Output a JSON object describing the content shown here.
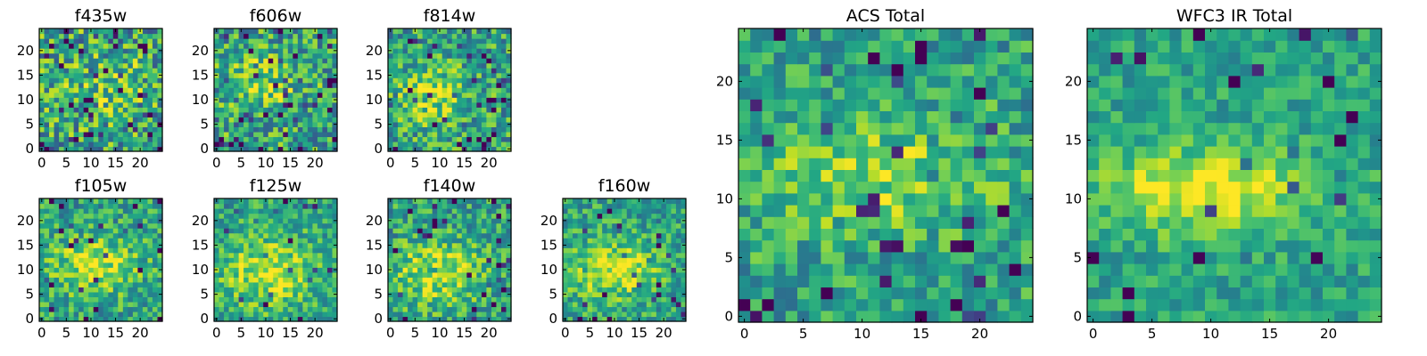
{
  "chart_data": [
    {
      "type": "heatmap",
      "title": "f435w",
      "size": 25,
      "colormap": "viridis",
      "seed": 11,
      "blob_strength": 0.25,
      "noise": 0.42,
      "dark_spots": 0.1,
      "blob": [
        0.55,
        0.55,
        0.35,
        0.28
      ],
      "xticks": [
        0,
        5,
        10,
        15,
        20
      ],
      "yticks": [
        0,
        5,
        10,
        15,
        20
      ],
      "xlim": [
        0,
        25
      ],
      "ylim": [
        0,
        25
      ]
    },
    {
      "type": "heatmap",
      "title": "f606w",
      "size": 25,
      "colormap": "viridis",
      "seed": 23,
      "blob_strength": 0.35,
      "noise": 0.38,
      "dark_spots": 0.08,
      "blob": [
        0.35,
        0.55,
        0.35,
        0.25
      ],
      "xticks": [
        0,
        5,
        10,
        15,
        20
      ],
      "yticks": [
        0,
        5,
        10,
        15,
        20
      ],
      "xlim": [
        0,
        25
      ],
      "ylim": [
        0,
        25
      ]
    },
    {
      "type": "heatmap",
      "title": "f814w",
      "size": 25,
      "colormap": "viridis",
      "seed": 37,
      "blob_strength": 0.45,
      "noise": 0.35,
      "dark_spots": 0.07,
      "blob": [
        0.35,
        0.45,
        0.3,
        0.22
      ],
      "xticks": [
        0,
        5,
        10,
        15,
        20
      ],
      "yticks": [
        0,
        5,
        10,
        15,
        20
      ],
      "xlim": [
        0,
        25
      ],
      "ylim": [
        0,
        25
      ]
    },
    {
      "type": "heatmap",
      "title": "f105w",
      "size": 25,
      "colormap": "viridis",
      "seed": 41,
      "blob_strength": 0.55,
      "noise": 0.3,
      "dark_spots": 0.05,
      "blob": [
        0.45,
        0.45,
        0.35,
        0.22
      ],
      "xticks": [
        0,
        5,
        10,
        15,
        20
      ],
      "yticks": [
        0,
        5,
        10,
        15,
        20
      ],
      "xlim": [
        0,
        25
      ],
      "ylim": [
        0,
        25
      ]
    },
    {
      "type": "heatmap",
      "title": "f125w",
      "size": 25,
      "colormap": "viridis",
      "seed": 53,
      "blob_strength": 0.55,
      "noise": 0.28,
      "dark_spots": 0.04,
      "blob": [
        0.45,
        0.4,
        0.4,
        0.28
      ],
      "xticks": [
        0,
        5,
        10,
        15,
        20
      ],
      "yticks": [
        0,
        5,
        10,
        15,
        20
      ],
      "xlim": [
        0,
        25
      ],
      "ylim": [
        0,
        25
      ]
    },
    {
      "type": "heatmap",
      "title": "f140w",
      "size": 25,
      "colormap": "viridis",
      "seed": 67,
      "blob_strength": 0.55,
      "noise": 0.3,
      "dark_spots": 0.05,
      "blob": [
        0.4,
        0.4,
        0.35,
        0.25
      ],
      "xticks": [
        0,
        5,
        10,
        15,
        20
      ],
      "yticks": [
        0,
        5,
        10,
        15,
        20
      ],
      "xlim": [
        0,
        25
      ],
      "ylim": [
        0,
        25
      ]
    },
    {
      "type": "heatmap",
      "title": "f160w",
      "size": 25,
      "colormap": "viridis",
      "seed": 79,
      "blob_strength": 0.6,
      "noise": 0.28,
      "dark_spots": 0.05,
      "blob": [
        0.4,
        0.42,
        0.35,
        0.22
      ],
      "xticks": [
        0,
        5,
        10,
        15,
        20
      ],
      "yticks": [
        0,
        5,
        10,
        15,
        20
      ],
      "xlim": [
        0,
        25
      ],
      "ylim": [
        0,
        25
      ]
    },
    {
      "type": "heatmap",
      "title": "ACS Total",
      "size": 25,
      "colormap": "viridis",
      "seed": 91,
      "blob_strength": 0.45,
      "noise": 0.28,
      "dark_spots": 0.06,
      "blob": [
        0.45,
        0.5,
        0.38,
        0.18
      ],
      "xticks": [
        0,
        5,
        10,
        15,
        20
      ],
      "yticks": [
        0,
        5,
        10,
        15,
        20
      ],
      "xlim": [
        0,
        25
      ],
      "ylim": [
        0,
        25
      ]
    },
    {
      "type": "heatmap",
      "title": "WFC3 IR Total",
      "size": 25,
      "colormap": "viridis",
      "seed": 103,
      "blob_strength": 0.7,
      "noise": 0.2,
      "dark_spots": 0.05,
      "blob": [
        0.4,
        0.45,
        0.35,
        0.14
      ],
      "xticks": [
        0,
        5,
        10,
        15,
        20
      ],
      "yticks": [
        0,
        5,
        10,
        15,
        20
      ],
      "xlim": [
        0,
        25
      ],
      "ylim": [
        0,
        25
      ]
    }
  ]
}
